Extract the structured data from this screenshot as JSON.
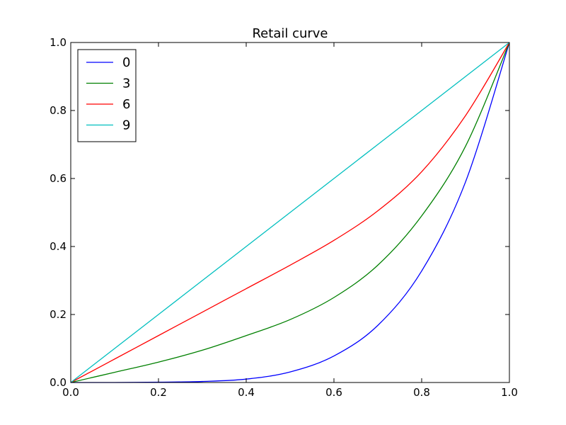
{
  "chart_data": {
    "type": "line",
    "title": "Retail curve",
    "xlabel": "",
    "ylabel": "",
    "xlim": [
      0.0,
      1.0
    ],
    "ylim": [
      0.0,
      1.0
    ],
    "xticks": [
      "0.0",
      "0.2",
      "0.4",
      "0.6",
      "0.8",
      "1.0"
    ],
    "yticks": [
      "0.0",
      "0.2",
      "0.4",
      "0.6",
      "0.8",
      "1.0"
    ],
    "grid": false,
    "legend_position": "top-left",
    "x": [
      0.0,
      0.1,
      0.2,
      0.3,
      0.4,
      0.5,
      0.6,
      0.7,
      0.8,
      0.9,
      1.0
    ],
    "series": [
      {
        "name": "0",
        "color": "#0000ff",
        "values": [
          0.0,
          0.0,
          0.001,
          0.003,
          0.01,
          0.031,
          0.078,
          0.168,
          0.328,
          0.59,
          1.0
        ]
      },
      {
        "name": "3",
        "color": "#008000",
        "values": [
          0.0,
          0.03,
          0.06,
          0.095,
          0.138,
          0.185,
          0.25,
          0.345,
          0.49,
          0.695,
          1.0
        ]
      },
      {
        "name": "6",
        "color": "#ff0000",
        "values": [
          0.0,
          0.069,
          0.138,
          0.207,
          0.276,
          0.345,
          0.418,
          0.505,
          0.62,
          0.785,
          1.0
        ]
      },
      {
        "name": "9",
        "color": "#00bfbf",
        "values": [
          0.0,
          0.1,
          0.2,
          0.3,
          0.4,
          0.5,
          0.6,
          0.7,
          0.8,
          0.9,
          1.0
        ]
      }
    ]
  }
}
